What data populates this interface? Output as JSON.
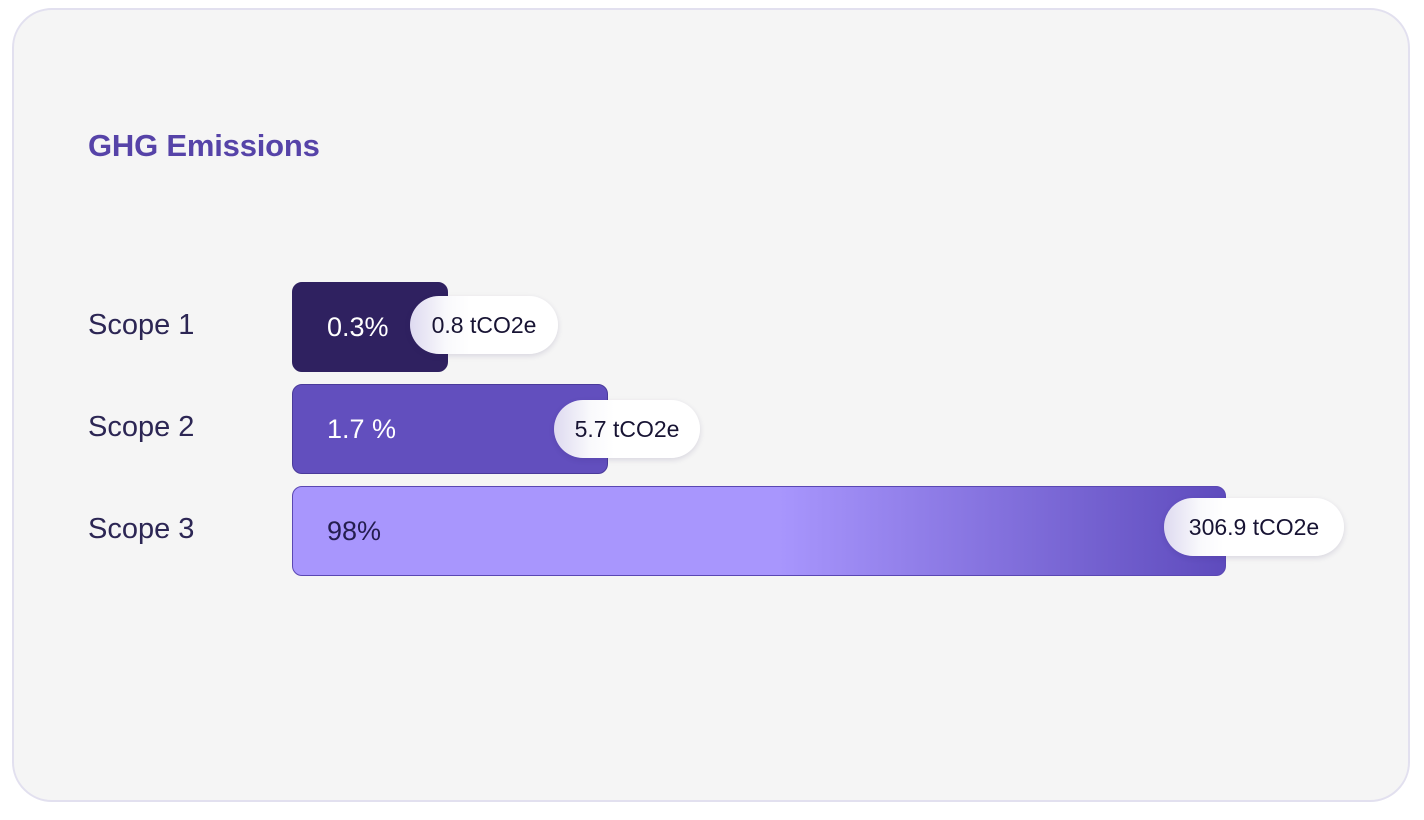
{
  "card": {
    "title": "GHG Emissions"
  },
  "chart_data": {
    "type": "bar",
    "orientation": "horizontal",
    "title": "GHG Emissions",
    "categories": [
      "Scope 1",
      "Scope 2",
      "Scope 3"
    ],
    "percent_labels": [
      "0.3%",
      "1.7 %",
      "98%"
    ],
    "values": [
      0.8,
      5.7,
      306.9
    ],
    "value_labels": [
      "0.8 tCO2e",
      "5.7 tCO2e",
      "306.9 tCO2e"
    ],
    "unit": "tCO2e",
    "colors": [
      "#2f2160",
      "#624fbe",
      "#a896fd"
    ],
    "bar_gradient_end": "#5e4bbd",
    "grid": false,
    "legend": "none"
  }
}
